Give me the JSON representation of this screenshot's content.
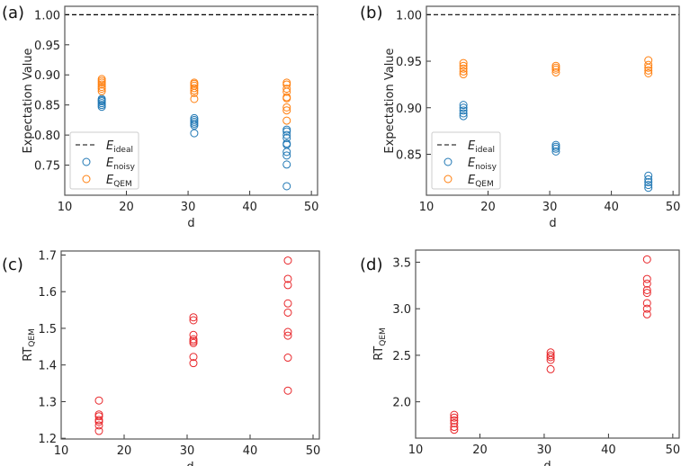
{
  "chart_data": [
    {
      "panel_label": "(a)",
      "type": "scatter",
      "xlabel": "d",
      "ylabel": "Expectation Value",
      "xlim": [
        10,
        51
      ],
      "ylim": [
        0.7,
        1.014
      ],
      "xticks": [
        "10",
        "20",
        "30",
        "40",
        "50"
      ],
      "xtick_values": [
        10,
        20,
        30,
        40,
        50
      ],
      "yticks": [
        "0.75",
        "0.80",
        "0.85",
        "0.90",
        "0.95",
        "1.00"
      ],
      "ytick_values": [
        0.75,
        0.8,
        0.85,
        0.9,
        0.95,
        1.0
      ],
      "legend_position": "lower-left",
      "hline": {
        "name": "E_ideal",
        "label_main": "E",
        "label_sub": "ideal",
        "value": 1.0,
        "color": "#000000"
      },
      "series": [
        {
          "name": "E_noisy",
          "label_main": "E",
          "label_sub": "noisy",
          "color": "#1f77b4",
          "x": [
            16,
            16,
            16,
            16,
            16,
            16,
            31,
            31,
            31,
            31,
            31,
            31,
            46,
            46,
            46,
            46,
            46,
            46,
            46,
            46,
            46,
            46
          ],
          "y": [
            0.847,
            0.85,
            0.853,
            0.856,
            0.858,
            0.86,
            0.803,
            0.816,
            0.819,
            0.822,
            0.825,
            0.828,
            0.715,
            0.751,
            0.766,
            0.772,
            0.784,
            0.786,
            0.795,
            0.8,
            0.806,
            0.809
          ]
        },
        {
          "name": "E_QEM",
          "label_main": "E",
          "label_sub": "QEM",
          "color": "#ff7f0e",
          "x": [
            16,
            16,
            16,
            16,
            16,
            16,
            16,
            31,
            31,
            31,
            31,
            31,
            31,
            31,
            46,
            46,
            46,
            46,
            46,
            46,
            46,
            46,
            46
          ],
          "y": [
            0.873,
            0.877,
            0.88,
            0.884,
            0.887,
            0.89,
            0.893,
            0.86,
            0.87,
            0.874,
            0.878,
            0.882,
            0.885,
            0.887,
            0.824,
            0.841,
            0.846,
            0.861,
            0.863,
            0.872,
            0.877,
            0.884,
            0.887
          ]
        }
      ]
    },
    {
      "panel_label": "(b)",
      "type": "scatter",
      "xlabel": "d",
      "ylabel": "Expectation Value",
      "xlim": [
        10,
        51
      ],
      "ylim": [
        0.806,
        1.009
      ],
      "xticks": [
        "10",
        "20",
        "30",
        "40",
        "50"
      ],
      "xtick_values": [
        10,
        20,
        30,
        40,
        50
      ],
      "yticks": [
        "0.85",
        "0.90",
        "0.95",
        "1.00"
      ],
      "ytick_values": [
        0.85,
        0.9,
        0.95,
        1.0
      ],
      "legend_position": "lower-left",
      "hline": {
        "name": "E_ideal",
        "label_main": "E",
        "label_sub": "ideal",
        "value": 1.0,
        "color": "#000000"
      },
      "series": [
        {
          "name": "E_noisy",
          "label_main": "E",
          "label_sub": "noisy",
          "color": "#1f77b4",
          "x": [
            16,
            16,
            16,
            16,
            16,
            31,
            31,
            31,
            31,
            46,
            46,
            46,
            46,
            46
          ],
          "y": [
            0.891,
            0.894,
            0.897,
            0.9,
            0.903,
            0.853,
            0.856,
            0.858,
            0.86,
            0.814,
            0.817,
            0.82,
            0.823,
            0.827
          ]
        },
        {
          "name": "E_QEM",
          "label_main": "E",
          "label_sub": "QEM",
          "color": "#ff7f0e",
          "x": [
            16,
            16,
            16,
            16,
            16,
            31,
            31,
            31,
            31,
            46,
            46,
            46,
            46,
            46
          ],
          "y": [
            0.936,
            0.939,
            0.942,
            0.945,
            0.948,
            0.938,
            0.941,
            0.943,
            0.945,
            0.937,
            0.94,
            0.943,
            0.946,
            0.951
          ]
        }
      ]
    },
    {
      "panel_label": "(c)",
      "type": "scatter",
      "xlabel": "d",
      "ylabel_main": "RT",
      "ylabel_sub": "QEM",
      "xlim": [
        10,
        51
      ],
      "ylim": [
        1.198,
        1.711
      ],
      "xticks": [
        "10",
        "20",
        "30",
        "40",
        "50"
      ],
      "xtick_values": [
        10,
        20,
        30,
        40,
        50
      ],
      "yticks": [
        "1.2",
        "1.3",
        "1.4",
        "1.5",
        "1.6",
        "1.7"
      ],
      "ytick_values": [
        1.2,
        1.3,
        1.4,
        1.5,
        1.6,
        1.7
      ],
      "series": [
        {
          "name": "RT_QEM",
          "color": "#e8262a",
          "x": [
            16,
            16,
            16,
            16,
            16,
            16,
            16,
            31,
            31,
            31,
            31,
            31,
            31,
            31,
            31,
            46,
            46,
            46,
            46,
            46,
            46,
            46,
            46,
            46
          ],
          "y": [
            1.22,
            1.235,
            1.245,
            1.25,
            1.26,
            1.265,
            1.303,
            1.405,
            1.422,
            1.46,
            1.465,
            1.47,
            1.482,
            1.522,
            1.53,
            1.33,
            1.42,
            1.48,
            1.49,
            1.543,
            1.568,
            1.618,
            1.635,
            1.685
          ]
        }
      ]
    },
    {
      "panel_label": "(d)",
      "type": "scatter",
      "xlabel": "d",
      "ylabel_main": "RT",
      "ylabel_sub": "QEM",
      "xlim": [
        10,
        51
      ],
      "ylim": [
        1.61,
        3.63
      ],
      "xticks": [
        "10",
        "20",
        "30",
        "40",
        "50"
      ],
      "xtick_values": [
        10,
        20,
        30,
        40,
        50
      ],
      "yticks": [
        "2.0",
        "2.5",
        "3.0",
        "3.5"
      ],
      "ytick_values": [
        2.0,
        2.5,
        3.0,
        3.5
      ],
      "series": [
        {
          "name": "RT_QEM",
          "color": "#e8262a",
          "x": [
            16,
            16,
            16,
            16,
            16,
            16,
            31,
            31,
            31,
            31,
            31,
            46,
            46,
            46,
            46,
            46,
            46,
            46,
            46
          ],
          "y": [
            1.7,
            1.73,
            1.77,
            1.8,
            1.83,
            1.86,
            2.35,
            2.45,
            2.48,
            2.5,
            2.53,
            2.94,
            3.0,
            3.06,
            3.17,
            3.2,
            3.27,
            3.32,
            3.53
          ]
        }
      ]
    }
  ]
}
